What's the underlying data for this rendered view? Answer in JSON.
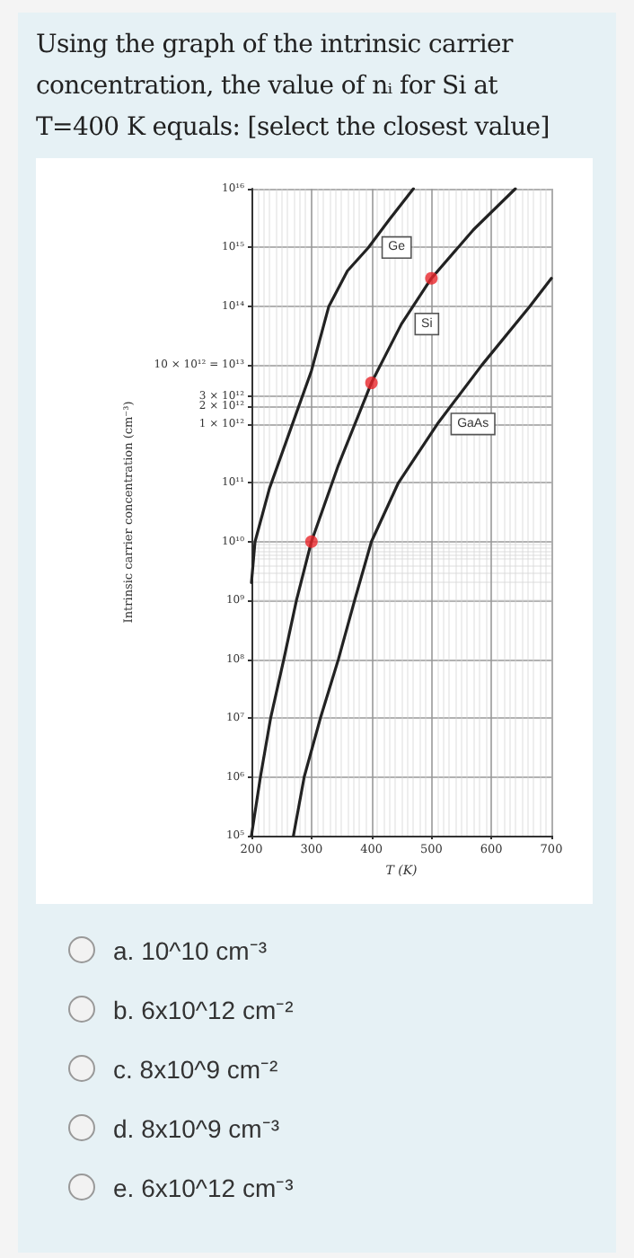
{
  "chart_data": {
    "type": "line",
    "title": "Using the graph of the intrinsic carrier concentration, the value of nᵢ for Si at T=400 K equals: [select the closest value]",
    "xlabel": "T (K)",
    "ylabel": "Intrinsic carrier concentration (cm⁻³)",
    "series": [
      {
        "name": "Ge",
        "color": "#222222",
        "x": [
          200,
          206,
          230,
          265,
          300,
          329,
          360,
          395,
          430,
          470
        ],
        "values": [
          2000000000.0,
          10000000000.0,
          80000000000.0,
          800000000000.0,
          8000000000000.0,
          100000000000000.0,
          400000000000000.0,
          1000000000000000.0,
          3000000000000000.0,
          1e+16
        ]
      },
      {
        "name": "Si",
        "color": "#222222",
        "x": [
          200,
          215,
          232,
          254,
          275,
          300,
          345,
          400,
          450,
          500,
          570,
          640
        ],
        "values": [
          100000.0,
          1000000.0,
          10000000.0,
          100000000.0,
          1000000000.0,
          10000000000.0,
          200000000000.0,
          5000000000000.0,
          50000000000000.0,
          300000000000000.0,
          2000000000000000.0,
          1e+16
        ]
      },
      {
        "name": "GaAs",
        "color": "#222222",
        "x": [
          270,
          288,
          315,
          345,
          372,
          400,
          445,
          510,
          584,
          664,
          700
        ],
        "values": [
          100000.0,
          1000000.0,
          10000000.0,
          100000000.0,
          1000000000.0,
          10000000000.0,
          100000000000.0,
          1000000000000.0,
          10000000000000.0,
          100000000000000.0,
          300000000000000.0
        ]
      },
      {
        "type": "scatter",
        "color": "#e8262b",
        "marker": "circle",
        "x": [
          300,
          400,
          500
        ],
        "values": [
          10000000000.0,
          5000000000000.0,
          300000000000000.0
        ]
      }
    ],
    "xlim": [
      200,
      700
    ],
    "xticks": [
      200,
      300,
      400,
      500,
      600,
      700
    ],
    "ylim": [
      100000.0,
      1e+16
    ],
    "yticks": [
      {
        "value": 100000.0,
        "label": "10⁵"
      },
      {
        "value": 1000000.0,
        "label": "10⁶"
      },
      {
        "value": 10000000.0,
        "label": "10⁷"
      },
      {
        "value": 100000000.0,
        "label": "10⁸"
      },
      {
        "value": 1000000000.0,
        "label": "10⁹"
      },
      {
        "value": 10000000000.0,
        "label": "10¹⁰"
      },
      {
        "value": 100000000000.0,
        "label": "10¹¹"
      },
      {
        "value": 1000000000000.0,
        "label": "1 × 10¹²"
      },
      {
        "value": 2000000000000.0,
        "label": "2 × 10¹²"
      },
      {
        "value": 3000000000000.0,
        "label": "3 × 10¹²"
      },
      {
        "value": 10000000000000.0,
        "label": "10 × 10¹² = 10¹³"
      },
      {
        "value": 100000000000000.0,
        "label": "10¹⁴"
      },
      {
        "value": 1000000000000000.0,
        "label": "10¹⁵"
      },
      {
        "value": 1e+16,
        "label": "10¹⁶"
      }
    ],
    "log": "y",
    "grid": true,
    "legend": false,
    "marker": "none",
    "line_style": "solid",
    "annotations": [
      "a. 10^10 cm⁻³",
      "b. 6x10^12 cm⁻²",
      "c. 8x10^9 cm⁻²",
      "d. 8x10^9 cm⁻³",
      "e. 6x10^12 cm⁻³"
    ]
  }
}
